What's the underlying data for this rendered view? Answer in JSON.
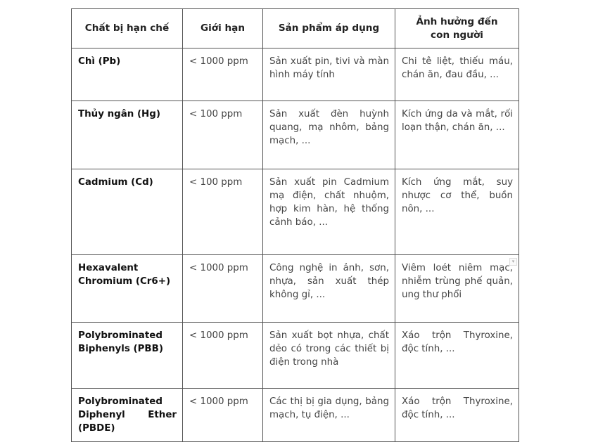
{
  "table": {
    "headers": [
      "Chất bị hạn chế",
      "Giới hạn",
      "Sản phẩm áp dụng",
      "Ảnh hưởng đến con người"
    ],
    "rows": [
      {
        "substance": "Chì (Pb)",
        "limit": "< 1000 ppm",
        "products": "Sản xuất pin, tivi và màn hình máy tính",
        "effects": "Chi tê liệt, thiếu máu, chán ăn, đau đầu, ..."
      },
      {
        "substance": "Thủy ngân (Hg)",
        "limit": "< 100 ppm",
        "products": "Sản xuất đèn huỳnh quang, mạ nhôm, bảng mạch, ...",
        "effects": "Kích ứng da và mắt, rối loạn thận, chán ăn, ..."
      },
      {
        "substance": "Cadmium (Cd)",
        "limit": "< 100 ppm",
        "products": "Sản xuất pin Cadmium mạ điện, chất nhuộm, hợp kim hàn, hệ thống cảnh báo, ...",
        "effects": "Kích ứng mắt, suy nhược cơ thể, buồn nôn, ..."
      },
      {
        "substance": "Hexavalent Chromium (Cr6+)",
        "limit": "< 1000 ppm",
        "products": "Công nghệ in ảnh, sơn, nhựa, sản xuất thép không gỉ, ...",
        "effects": "Viêm loét niêm mạc, nhiễm trùng phế quản, ung thư phổi"
      },
      {
        "substance": "Polybrominated Biphenyls (PBB)",
        "limit": "< 1000 ppm",
        "products": "Sản xuất bọt nhựa, chất dẻo có trong các thiết bị điện trong nhà",
        "effects": "Xáo trộn Thyroxine, độc tính, ..."
      },
      {
        "substance": "Polybrominated Diphenyl Ether (PBDE)",
        "limit": "< 1000 ppm",
        "products": "Các thị bị gia dụng, bảng mạch, tụ điện, ...",
        "effects": "Xáo trộn Thyroxine, độc tính, ..."
      }
    ]
  },
  "icons": {
    "dropdown": "dropdown-arrow-icon"
  }
}
